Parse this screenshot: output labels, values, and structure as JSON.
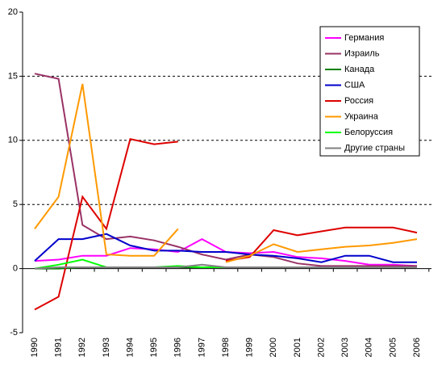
{
  "chart_data": {
    "type": "line",
    "categories": [
      "1990",
      "1991",
      "1992",
      "1993",
      "1994",
      "1995",
      "1996",
      "1997",
      "1998",
      "1999",
      "2000",
      "2001",
      "2002",
      "2003",
      "2004",
      "2005",
      "2006"
    ],
    "ylim": [
      -5,
      20
    ],
    "yticks": [
      -5,
      0,
      5,
      10,
      15,
      20
    ],
    "grid": true,
    "legend": "upper-right",
    "series": [
      {
        "name": "Германия",
        "color": "#ff00ff",
        "values": [
          0.6,
          0.7,
          1.0,
          1.0,
          1.6,
          1.5,
          1.3,
          2.3,
          1.3,
          1.2,
          1.3,
          0.9,
          0.8,
          0.6,
          0.3,
          0.3,
          0.2
        ]
      },
      {
        "name": "Израиль",
        "color": "#993366",
        "values": [
          15.2,
          14.8,
          3.4,
          2.3,
          2.5,
          2.2,
          1.7,
          1.1,
          0.7,
          1.1,
          0.9,
          0.4,
          0.2,
          0.2,
          0.2,
          0.2,
          0.2
        ]
      },
      {
        "name": "Канада",
        "color": "#008000",
        "values": [
          0,
          0,
          0.1,
          0.1,
          0.1,
          0.1,
          0.1,
          0.1,
          0.1,
          0.1,
          0.1,
          0.1,
          0.1,
          0.1,
          0.1,
          0.1,
          0.1
        ]
      },
      {
        "name": "США",
        "color": "#0000cc",
        "values": [
          0.6,
          2.3,
          2.3,
          2.7,
          1.8,
          1.4,
          1.4,
          1.3,
          1.3,
          1.1,
          1.0,
          0.8,
          0.5,
          1.0,
          1.0,
          0.5,
          0.5
        ]
      },
      {
        "name": "Россия",
        "color": "#dd0000",
        "values": [
          -3.2,
          -2.2,
          5.6,
          3.1,
          10.1,
          9.7,
          9.9,
          null,
          0.6,
          0.9,
          3.0,
          2.6,
          2.9,
          3.2,
          3.2,
          3.2,
          2.8
        ]
      },
      {
        "name": "Украина",
        "color": "#ff9900",
        "values": [
          3.1,
          5.6,
          14.4,
          1.1,
          1.0,
          1.0,
          3.1,
          null,
          0.5,
          1.0,
          1.9,
          1.3,
          1.5,
          1.7,
          1.8,
          2.0,
          2.3
        ]
      },
      {
        "name": "Белоруссия",
        "color": "#00ff00",
        "values": [
          0,
          0.3,
          0.7,
          0.1,
          0.1,
          0.1,
          0.2,
          0.1,
          0.1,
          0.1,
          0.1,
          0.1,
          0.1,
          0.1,
          0.1,
          0.1,
          0.1
        ]
      },
      {
        "name": "Другие страны",
        "color": "#808080",
        "values": [
          0,
          0.1,
          0.1,
          0.1,
          0.1,
          0.1,
          0.1,
          0.3,
          0.1,
          0.1,
          0.1,
          0.1,
          0.1,
          0.1,
          0.1,
          0.1,
          0.1
        ]
      }
    ]
  }
}
